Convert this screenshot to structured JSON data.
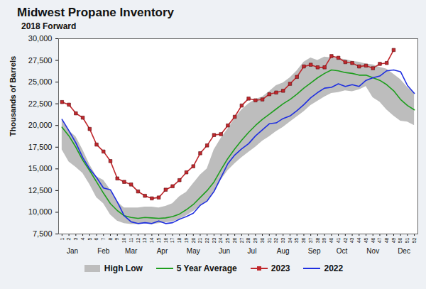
{
  "chart_data": {
    "type": "line",
    "title": "Midwest Propane Inventory",
    "subtitle": "2018 Forward",
    "y_label": "Thousands of Barrels",
    "x": [
      1,
      2,
      3,
      4,
      5,
      6,
      7,
      8,
      9,
      10,
      11,
      12,
      13,
      14,
      15,
      16,
      17,
      18,
      19,
      20,
      21,
      22,
      23,
      24,
      25,
      26,
      27,
      28,
      29,
      30,
      31,
      32,
      33,
      34,
      35,
      36,
      37,
      38,
      39,
      40,
      41,
      42,
      43,
      44,
      45,
      46,
      47,
      48,
      49,
      50,
      51,
      52
    ],
    "xlim": [
      0.5,
      52.5
    ],
    "xticks": [
      1,
      2,
      3,
      4,
      5,
      6,
      7,
      8,
      9,
      10,
      11,
      12,
      13,
      14,
      15,
      16,
      17,
      18,
      19,
      20,
      21,
      22,
      23,
      24,
      25,
      26,
      27,
      28,
      29,
      30,
      31,
      32,
      33,
      34,
      35,
      36,
      37,
      38,
      39,
      40,
      41,
      42,
      43,
      44,
      45,
      46,
      47,
      48,
      49,
      50,
      51,
      52
    ],
    "month_ticks": [
      {
        "value": 2.5,
        "label": "Jan"
      },
      {
        "value": 7,
        "label": "Feb"
      },
      {
        "value": 11,
        "label": "Mar"
      },
      {
        "value": 15.5,
        "label": "Apr"
      },
      {
        "value": 20,
        "label": "May"
      },
      {
        "value": 24.5,
        "label": "Jun"
      },
      {
        "value": 28.5,
        "label": "Jul"
      },
      {
        "value": 33,
        "label": "Aug"
      },
      {
        "value": 37.5,
        "label": "Sep"
      },
      {
        "value": 41.5,
        "label": "Oct"
      },
      {
        "value": 46,
        "label": "Nov"
      },
      {
        "value": 50.5,
        "label": "Dec"
      }
    ],
    "ylim": [
      7500,
      30000
    ],
    "yticks": [
      {
        "value": 7500,
        "label": "7,500"
      },
      {
        "value": 10000,
        "label": "10,000"
      },
      {
        "value": 12500,
        "label": "12,500"
      },
      {
        "value": 15000,
        "label": "15,000"
      },
      {
        "value": 17500,
        "label": "17,500"
      },
      {
        "value": 20000,
        "label": "20,000"
      },
      {
        "value": 22500,
        "label": "22,500"
      },
      {
        "value": 25000,
        "label": "25,000"
      },
      {
        "value": 27500,
        "label": "27,500"
      },
      {
        "value": 30000,
        "label": "30,000"
      }
    ],
    "legend": "bottom",
    "series": [
      {
        "name": "High Low",
        "type": "area",
        "color": "#bdbdbd",
        "low": [
          17200,
          15800,
          15200,
          14500,
          13200,
          11700,
          11000,
          9700,
          9000,
          8700,
          8600,
          8600,
          8700,
          8600,
          8700,
          8800,
          8900,
          9200,
          9600,
          10100,
          10700,
          11300,
          12200,
          13700,
          14800,
          15600,
          16300,
          16900,
          17500,
          18200,
          18700,
          19300,
          19800,
          20400,
          21000,
          21600,
          22300,
          22800,
          23300,
          23700,
          23800,
          24000,
          23900,
          24100,
          24500,
          23200,
          22700,
          21800,
          21100,
          20500,
          20400,
          20000
        ],
        "high": [
          20700,
          19400,
          18700,
          17200,
          15500,
          14100,
          13700,
          12600,
          11200,
          10500,
          10500,
          10500,
          10600,
          10600,
          10500,
          10700,
          11000,
          11800,
          12300,
          13300,
          14300,
          15000,
          17200,
          18500,
          19600,
          20800,
          21800,
          22500,
          23000,
          23300,
          23900,
          24600,
          24900,
          25500,
          26300,
          27300,
          27800,
          27500,
          27900,
          27800,
          27700,
          27600,
          27400,
          27300,
          27100,
          27000,
          26700,
          26500,
          25900,
          25300,
          24400,
          23700
        ]
      },
      {
        "name": "5 Year Average",
        "type": "line",
        "color": "#1e9e1e",
        "values": [
          19800,
          18800,
          17500,
          16000,
          14800,
          13500,
          12200,
          11000,
          10200,
          9600,
          9400,
          9300,
          9400,
          9350,
          9300,
          9350,
          9500,
          9800,
          10300,
          10900,
          11700,
          12500,
          13500,
          14900,
          16200,
          17300,
          18300,
          19200,
          20000,
          20700,
          21300,
          21900,
          22500,
          23000,
          23600,
          24300,
          24900,
          25500,
          26000,
          26400,
          26300,
          26100,
          26000,
          25800,
          25800,
          25500,
          25200,
          24700,
          24000,
          23000,
          22300,
          21800
        ]
      },
      {
        "name": "2023",
        "type": "line",
        "color": "#c0282d",
        "marker": "square",
        "values": [
          22700,
          22400,
          21400,
          20900,
          19600,
          17800,
          17000,
          15900,
          13900,
          13500,
          13200,
          12400,
          11900,
          11600,
          11700,
          12600,
          13000,
          13700,
          14600,
          15300,
          16800,
          17700,
          18900,
          19000,
          20000,
          21000,
          22300,
          23100,
          22900,
          23000,
          23600,
          23800,
          24000,
          24800,
          25600,
          26800,
          27000,
          26700,
          26700,
          28000,
          27800,
          27300,
          27200,
          26800,
          26900,
          26600,
          27100,
          27200,
          28700,
          null,
          null,
          null
        ]
      },
      {
        "name": "2022",
        "type": "line",
        "color": "#1f2fe0",
        "values": [
          20700,
          19400,
          18000,
          16300,
          15000,
          14000,
          12800,
          12600,
          11200,
          9600,
          8900,
          8700,
          8800,
          8700,
          9000,
          8700,
          8800,
          9200,
          9500,
          9900,
          10800,
          11300,
          12400,
          14000,
          15600,
          16600,
          17300,
          17900,
          18800,
          19500,
          20200,
          20300,
          20800,
          21100,
          21700,
          22400,
          23200,
          23800,
          24300,
          24400,
          24800,
          24500,
          24700,
          24500,
          25200,
          25500,
          25700,
          26300,
          26400,
          26200,
          24600,
          23700
        ]
      }
    ]
  }
}
